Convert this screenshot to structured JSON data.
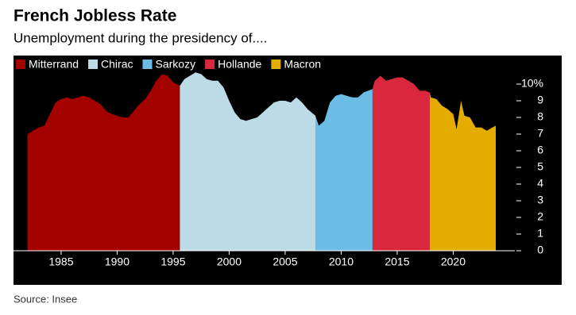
{
  "chart_data": {
    "type": "area",
    "title": "French Jobless Rate",
    "subtitle": "Unemployment during the presidency of....",
    "source": "Source: Insee",
    "xlim": [
      1980.75,
      2025.5
    ],
    "xticks": [
      1985,
      1990,
      1995,
      2000,
      2005,
      2010,
      2015,
      2020
    ],
    "ylim": [
      0,
      11
    ],
    "yticks": [
      0,
      1,
      2,
      3,
      4,
      5,
      6,
      7,
      8,
      9,
      {
        "value": 10,
        "label": "10%"
      }
    ],
    "series": [
      {
        "name": "Mitterrand",
        "color": "#a30000",
        "x": [
          1982,
          1982.5,
          1983,
          1983.5,
          1984,
          1984.5,
          1985,
          1985.5,
          1986,
          1986.5,
          1987,
          1987.5,
          1988,
          1988.5,
          1989,
          1989.5,
          1990,
          1990.5,
          1991,
          1991.5,
          1992,
          1992.5,
          1993,
          1993.5,
          1994,
          1994.5,
          1995,
          1995.6
        ],
        "values": [
          7.0,
          7.2,
          7.4,
          7.5,
          8.2,
          8.9,
          9.1,
          9.2,
          9.1,
          9.2,
          9.3,
          9.2,
          9.0,
          8.8,
          8.4,
          8.2,
          8.1,
          8.0,
          8.0,
          8.4,
          8.8,
          9.1,
          9.6,
          10.2,
          10.6,
          10.5,
          10.1,
          9.9
        ]
      },
      {
        "name": "Chirac",
        "color": "#bcdbe6",
        "x": [
          1995.6,
          1996,
          1996.5,
          1997,
          1997.5,
          1998,
          1998.5,
          1999,
          1999.5,
          2000,
          2000.5,
          2001,
          2001.5,
          2002,
          2002.5,
          2003,
          2003.5,
          2004,
          2004.5,
          2005,
          2005.5,
          2006,
          2006.5,
          2007,
          2007.7
        ],
        "values": [
          9.9,
          10.3,
          10.5,
          10.7,
          10.6,
          10.3,
          10.2,
          10.2,
          9.8,
          9.0,
          8.3,
          7.9,
          7.8,
          7.9,
          8.0,
          8.3,
          8.6,
          8.9,
          9.0,
          9.0,
          8.9,
          9.2,
          8.9,
          8.5,
          8.1
        ]
      },
      {
        "name": "Sarkozy",
        "color": "#6cbde5",
        "x": [
          2007.7,
          2008,
          2008.5,
          2009,
          2009.5,
          2010,
          2010.5,
          2011,
          2011.5,
          2012,
          2012.8
        ],
        "values": [
          8.1,
          7.5,
          7.8,
          8.9,
          9.3,
          9.4,
          9.3,
          9.2,
          9.2,
          9.5,
          9.7
        ]
      },
      {
        "name": "Hollande",
        "color": "#d9283e",
        "x": [
          2012.8,
          2013,
          2013.5,
          2014,
          2014.5,
          2015,
          2015.5,
          2016,
          2016.5,
          2017,
          2017.5,
          2017.9
        ],
        "values": [
          9.7,
          10.2,
          10.5,
          10.2,
          10.3,
          10.4,
          10.4,
          10.2,
          10.0,
          9.6,
          9.6,
          9.5
        ]
      },
      {
        "name": "Macron",
        "color": "#e5ac00",
        "x": [
          2017.9,
          2018,
          2018.5,
          2019,
          2019.5,
          2020,
          2020.3,
          2020.7,
          2021,
          2021.5,
          2022,
          2022.5,
          2023,
          2023.5,
          2023.8
        ],
        "values": [
          9.5,
          9.2,
          9.1,
          8.7,
          8.5,
          8.2,
          7.3,
          9.0,
          8.1,
          8.0,
          7.4,
          7.4,
          7.2,
          7.4,
          7.5
        ]
      }
    ]
  }
}
